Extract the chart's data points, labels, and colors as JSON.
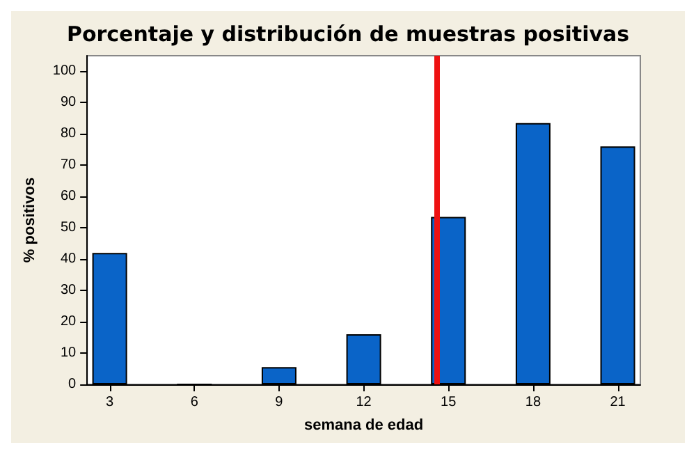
{
  "chart_data": {
    "type": "bar",
    "title": "Porcentaje y distribución de muestras positivas",
    "xlabel": "semana de edad",
    "ylabel": "% positivos",
    "x": [
      3,
      6,
      9,
      12,
      15,
      18,
      21
    ],
    "values": [
      42,
      0,
      5.5,
      16,
      53.5,
      83.5,
      76
    ],
    "color": "#0a64c8",
    "xlim": [
      2.2,
      21.8
    ],
    "xticks": [
      3,
      6,
      9,
      12,
      15,
      18,
      21
    ],
    "ylim": [
      0,
      105
    ],
    "yticks": [
      0,
      10,
      20,
      30,
      40,
      50,
      60,
      70,
      80,
      90,
      100
    ],
    "ref_lines": [
      {
        "axis": "x",
        "value": 14.6,
        "color": "#ee1111"
      }
    ],
    "grid": false
  }
}
